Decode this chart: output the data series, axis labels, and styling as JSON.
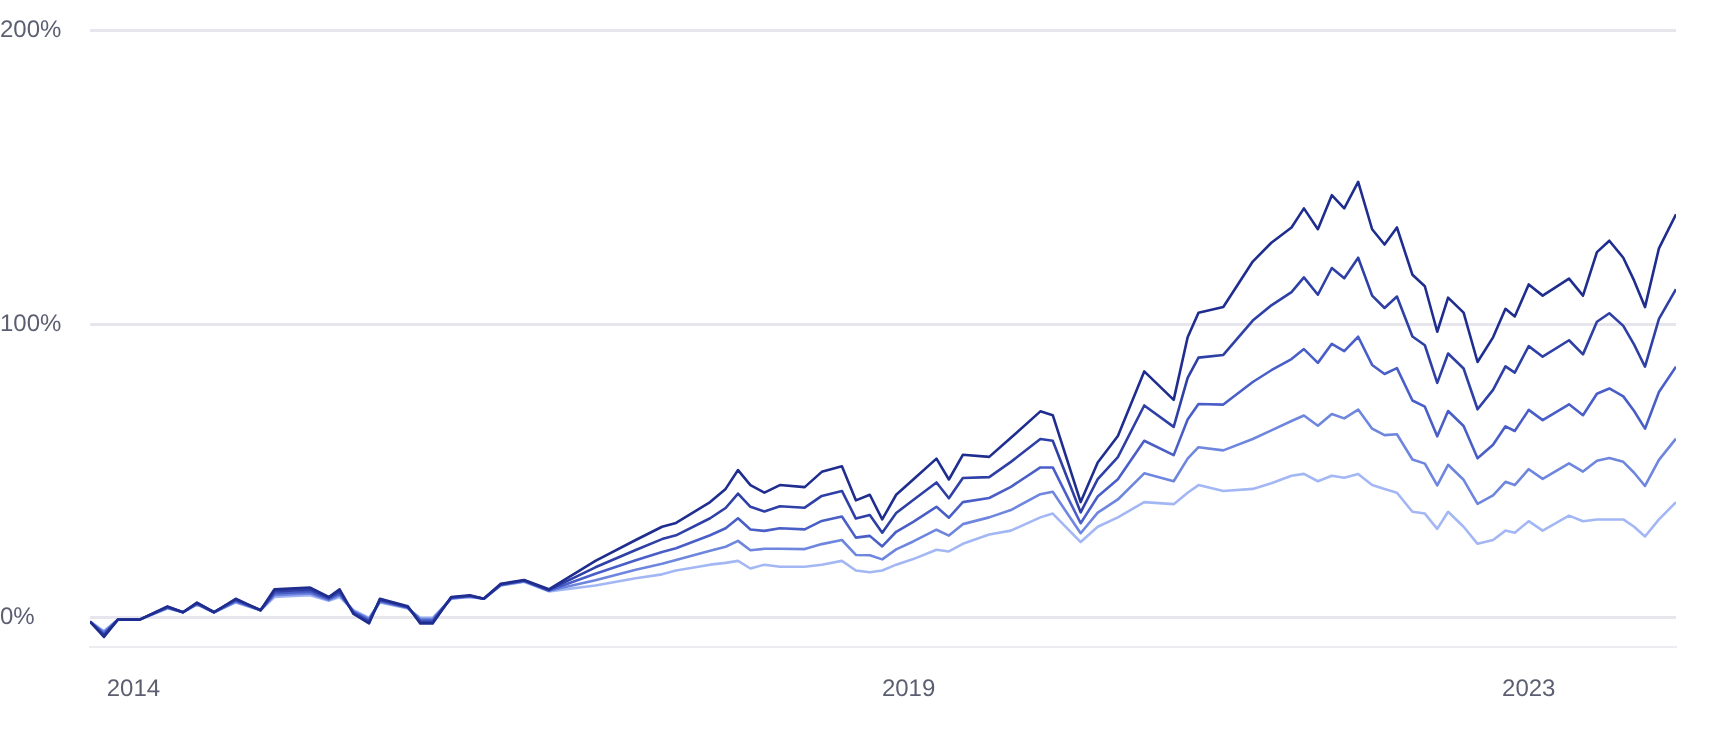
{
  "chart_data": {
    "type": "line",
    "x": [
      2013.72,
      2013.81,
      2013.9,
      2014.04,
      2014.22,
      2014.32,
      2014.41,
      2014.52,
      2014.66,
      2014.82,
      2014.91,
      2015.14,
      2015.26,
      2015.33,
      2015.42,
      2015.52,
      2015.59,
      2015.77,
      2015.85,
      2015.93,
      2016.05,
      2016.17,
      2016.26,
      2016.37,
      2016.52,
      2016.68,
      2016.98,
      2017.24,
      2017.41,
      2017.5,
      2017.72,
      2017.82,
      2017.9,
      2017.98,
      2018.07,
      2018.17,
      2018.33,
      2018.44,
      2018.57,
      2018.66,
      2018.75,
      2018.83,
      2018.92,
      2019.03,
      2019.18,
      2019.26,
      2019.35,
      2019.52,
      2019.66,
      2019.85,
      2019.93,
      2020.11,
      2020.22,
      2020.35,
      2020.52,
      2020.71,
      2020.8,
      2020.87,
      2021.03,
      2021.22,
      2021.34,
      2021.47,
      2021.55,
      2021.64,
      2021.73,
      2021.81,
      2021.9,
      2021.99,
      2022.07,
      2022.15,
      2022.25,
      2022.33,
      2022.41,
      2022.48,
      2022.58,
      2022.67,
      2022.77,
      2022.85,
      2022.91,
      2023.0,
      2023.09,
      2023.26,
      2023.35,
      2023.44,
      2023.52,
      2023.61,
      2023.68,
      2023.75,
      2023.84,
      2023.95
    ],
    "series": [
      {
        "color": "#1f2d8f",
        "values": [
          -1.3,
          -6.5,
          -0.6,
          -0.6,
          3.9,
          1.9,
          5.2,
          1.9,
          6.5,
          2.6,
          9.7,
          10.3,
          7.1,
          9.7,
          1.3,
          -1.9,
          6.5,
          3.9,
          -1.9,
          -1.9,
          7.1,
          7.7,
          6.5,
          11.6,
          12.9,
          9.7,
          19.4,
          26.5,
          31.0,
          32.3,
          39.4,
          43.9,
          50.3,
          45.2,
          42.6,
          45.2,
          44.5,
          49.7,
          51.6,
          40.0,
          41.9,
          33.5,
          41.9,
          47.1,
          54.2,
          47.1,
          55.5,
          54.8,
          61.3,
          70.3,
          69.0,
          39.4,
          52.9,
          61.9,
          83.9,
          74.2,
          95.5,
          103.9,
          105.8,
          121.3,
          127.7,
          132.9,
          139.4,
          132.3,
          143.9,
          139.4,
          148.4,
          132.3,
          127.1,
          132.9,
          116.8,
          112.9,
          97.4,
          109.0,
          103.9,
          87.1,
          95.5,
          105.2,
          102.6,
          113.5,
          109.7,
          115.5,
          109.7,
          124.5,
          128.4,
          122.6,
          114.8,
          105.8,
          125.8,
          137.4
        ]
      },
      {
        "color": "#2e3fa6",
        "values": [
          -1.3,
          -6.0,
          -0.6,
          -0.6,
          3.7,
          1.9,
          5.0,
          1.9,
          6.2,
          2.6,
          9.0,
          9.6,
          6.8,
          9.0,
          1.6,
          -1.4,
          6.2,
          3.7,
          -1.4,
          -1.4,
          6.9,
          7.5,
          6.5,
          11.4,
          12.7,
          9.5,
          17.2,
          23.1,
          26.8,
          28.1,
          33.9,
          37.4,
          42.3,
          37.8,
          36.2,
          38.0,
          37.5,
          41.5,
          43.2,
          33.8,
          35.0,
          29.0,
          35.7,
          40.1,
          46.1,
          40.7,
          47.6,
          47.9,
          53.1,
          60.9,
          60.3,
          35.9,
          47.2,
          54.7,
          72.3,
          65.0,
          81.7,
          88.6,
          89.5,
          101.2,
          106.4,
          110.9,
          115.9,
          110.0,
          119.1,
          115.6,
          122.6,
          109.7,
          105.5,
          109.4,
          95.8,
          92.8,
          80.0,
          90.0,
          84.9,
          71.0,
          77.6,
          85.6,
          83.5,
          92.5,
          88.9,
          94.5,
          89.7,
          100.8,
          103.7,
          99.4,
          93.0,
          85.5,
          101.8,
          111.9
        ]
      },
      {
        "color": "#4a5ec7",
        "values": [
          -1.3,
          -5.4,
          -0.6,
          -0.6,
          3.5,
          1.9,
          4.8,
          1.9,
          5.8,
          2.6,
          8.3,
          8.9,
          6.4,
          8.3,
          2.0,
          -0.9,
          5.8,
          3.5,
          -0.9,
          -0.9,
          6.8,
          7.4,
          6.5,
          11.3,
          12.6,
          9.3,
          15.0,
          19.6,
          22.4,
          23.7,
          28.1,
          30.5,
          33.9,
          30.1,
          29.6,
          30.5,
          30.1,
          33.0,
          34.5,
          27.3,
          27.9,
          24.3,
          29.3,
          32.7,
          37.8,
          34.1,
          39.4,
          40.8,
          44.6,
          51.2,
          51.2,
          32.2,
          41.3,
          47.2,
          60.3,
          55.4,
          67.5,
          72.8,
          72.6,
          80.3,
          84.3,
          88.1,
          91.5,
          86.8,
          93.3,
          90.8,
          95.7,
          86.1,
          83.0,
          85.0,
          74.0,
          71.9,
          61.8,
          70.4,
          65.3,
          54.3,
          58.9,
          65.2,
          63.6,
          70.8,
          67.3,
          72.7,
          69.0,
          76.3,
          78.1,
          75.4,
          70.4,
          64.4,
          76.9,
          85.5
        ]
      },
      {
        "color": "#6e86de",
        "values": [
          -1.3,
          -4.9,
          -0.6,
          -0.6,
          3.4,
          1.9,
          4.7,
          1.9,
          5.5,
          2.6,
          7.7,
          8.3,
          6.1,
          7.7,
          2.3,
          -0.4,
          5.5,
          3.4,
          -0.4,
          -0.4,
          6.6,
          7.2,
          6.5,
          11.1,
          12.4,
          9.2,
          12.8,
          16.4,
          18.4,
          19.7,
          22.8,
          24.2,
          26.2,
          23.0,
          23.5,
          23.5,
          23.4,
          25.1,
          26.5,
          21.4,
          21.3,
          19.9,
          23.3,
          26.0,
          30.0,
          28.0,
          31.9,
          34.2,
          36.7,
          42.1,
          42.9,
          28.8,
          35.8,
          40.3,
          49.2,
          46.5,
          54.2,
          58.1,
          57.0,
          60.9,
          63.8,
          67.0,
          68.9,
          65.4,
          69.4,
          67.9,
          70.9,
          64.4,
          62.2,
          62.5,
          53.9,
          52.5,
          45.1,
          52.1,
          47.0,
          38.8,
          41.7,
          46.3,
          45.2,
          50.6,
          47.3,
          52.6,
          49.8,
          53.5,
          54.4,
          53.1,
          49.4,
          44.9,
          53.8,
          61.0
        ]
      },
      {
        "color": "#a3b7f4",
        "values": [
          -1.3,
          -4.5,
          -0.6,
          -0.6,
          3.2,
          1.9,
          4.5,
          1.9,
          5.2,
          2.6,
          7.1,
          7.7,
          5.8,
          7.1,
          2.6,
          0,
          5.2,
          3.2,
          0,
          0,
          6.5,
          7.1,
          6.5,
          11.0,
          12.3,
          9.0,
          11.0,
          13.5,
          14.8,
          16.1,
          18.1,
          18.7,
          19.4,
          16.8,
          18.1,
          17.4,
          17.4,
          18.1,
          19.4,
          16.1,
          15.5,
          16.1,
          18.1,
          20.0,
          23.2,
          22.6,
          25.2,
          28.4,
          29.7,
          34.2,
          35.5,
          25.8,
          31.0,
          34.2,
          39.4,
          38.7,
          42.6,
          45.2,
          43.2,
          43.9,
          45.8,
          48.4,
          49.0,
          46.5,
          48.4,
          47.7,
          49.0,
          45.2,
          43.9,
          42.6,
          36.1,
          35.5,
          30.3,
          36.1,
          31.0,
          25.2,
          26.5,
          29.7,
          29.0,
          32.9,
          29.7,
          34.8,
          32.9,
          33.5,
          33.5,
          33.5,
          31.0,
          27.7,
          33.5,
          39.4
        ]
      }
    ],
    "xlim": [
      2013.72,
      2023.95
    ],
    "xticks": [
      2014,
      2019,
      2023
    ],
    "ylim": [
      -10,
      200
    ],
    "yticks": [
      {
        "value": 0,
        "label": "0%"
      },
      {
        "value": 100,
        "label": "100%"
      },
      {
        "value": 200,
        "label": "200%"
      }
    ],
    "grid": "y",
    "legend": false
  }
}
